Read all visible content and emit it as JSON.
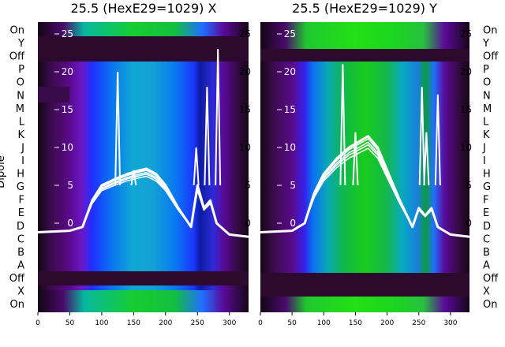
{
  "figure": {
    "ylabel": "Dipole",
    "row_labels": [
      "On",
      "Y",
      "Off",
      "P",
      "O",
      "N",
      "M",
      "L",
      "K",
      "J",
      "I",
      "H",
      "G",
      "F",
      "E",
      "D",
      "C",
      "B",
      "A",
      "Off",
      "X",
      "On"
    ]
  },
  "colors": {
    "gap_dark": "#2b0a2e",
    "curve": "#ffffff",
    "tick_color": "#ffffff"
  },
  "chart_data": [
    {
      "type": "heatmap",
      "title": "25.5 (HexE29=1029) X",
      "x_ticks": [
        0,
        50,
        100,
        150,
        200,
        250,
        300
      ],
      "xlim": [
        0,
        330
      ],
      "overlay_y_ticks": [
        0,
        5,
        10,
        15,
        20,
        25
      ],
      "overlay_ylim": [
        -2,
        27
      ],
      "grid": false,
      "colormap": "nipy_spectral-like (black → purple → blue → green)",
      "spectrum_peak": [
        170,
        8.5
      ],
      "spikes": [
        [
          125,
          20
        ],
        [
          150,
          7
        ],
        [
          248,
          10
        ],
        [
          265,
          18
        ],
        [
          282,
          23
        ]
      ],
      "overlay_curve_max": [
        [
          0,
          -1.2
        ],
        [
          50,
          -1
        ],
        [
          70,
          -0.5
        ],
        [
          85,
          3
        ],
        [
          100,
          5
        ],
        [
          120,
          5.8
        ],
        [
          140,
          6.5
        ],
        [
          160,
          7
        ],
        [
          170,
          7.2
        ],
        [
          185,
          6.5
        ],
        [
          200,
          5
        ],
        [
          220,
          2
        ],
        [
          240,
          -0.5
        ],
        [
          250,
          5
        ],
        [
          260,
          2
        ],
        [
          270,
          3
        ],
        [
          280,
          0
        ],
        [
          300,
          -1.5
        ],
        [
          330,
          -1.8
        ]
      ]
    },
    {
      "type": "heatmap",
      "title": "25.5 (HexE29=1029) Y",
      "x_ticks": [
        0,
        50,
        100,
        150,
        200,
        250,
        300
      ],
      "xlim": [
        0,
        330
      ],
      "overlay_y_ticks": [
        0,
        5,
        10,
        15,
        20,
        25
      ],
      "overlay_ylim": [
        -2,
        27
      ],
      "grid": false,
      "colormap": "nipy_spectral-like (black → purple → blue → green)",
      "spectrum_peak": [
        170,
        10.5
      ],
      "spikes": [
        [
          130,
          21
        ],
        [
          150,
          12
        ],
        [
          255,
          18
        ],
        [
          262,
          12
        ],
        [
          280,
          17
        ]
      ],
      "overlay_curve_max": [
        [
          0,
          -1.2
        ],
        [
          50,
          -1
        ],
        [
          70,
          0
        ],
        [
          85,
          4
        ],
        [
          100,
          6.5
        ],
        [
          120,
          8.5
        ],
        [
          140,
          10
        ],
        [
          160,
          11
        ],
        [
          170,
          11.5
        ],
        [
          185,
          10
        ],
        [
          200,
          7
        ],
        [
          220,
          3
        ],
        [
          240,
          -0.5
        ],
        [
          250,
          2
        ],
        [
          260,
          1
        ],
        [
          270,
          2
        ],
        [
          280,
          -0.5
        ],
        [
          300,
          -1.5
        ],
        [
          330,
          -1.8
        ]
      ]
    }
  ]
}
